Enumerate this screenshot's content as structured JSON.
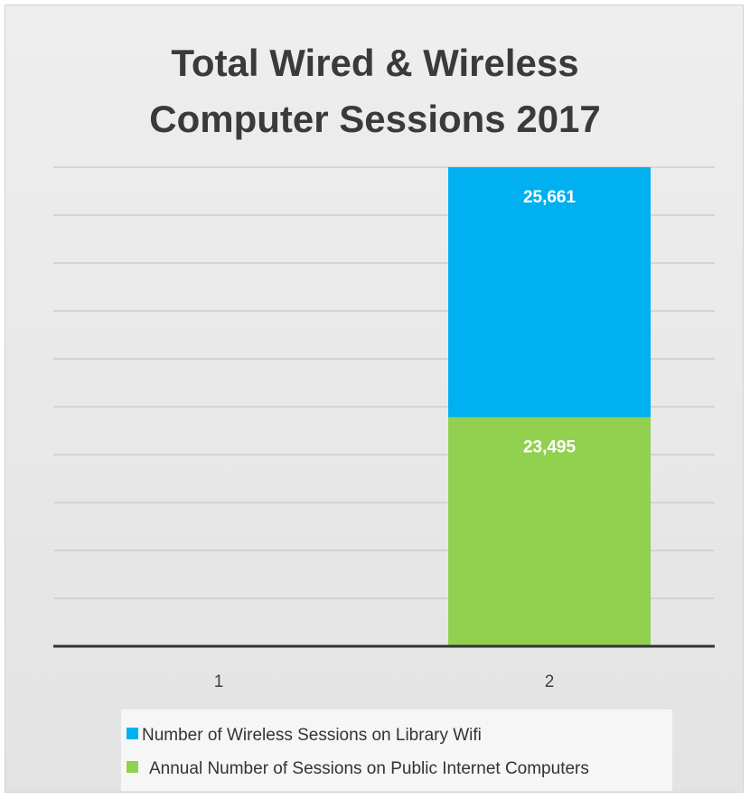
{
  "chart_data": {
    "type": "bar",
    "stacked": true,
    "title_lines": [
      "Total Wired & Wireless",
      "Computer Sessions 2017"
    ],
    "categories": [
      "1",
      "2"
    ],
    "series": [
      {
        "name": "Annual Number of Sessions on Public Internet Computers",
        "color": "#92d050",
        "values": [
          0,
          23495
        ],
        "labels": [
          "",
          "23,495"
        ]
      },
      {
        "name": "Number of Wireless Sessions on Library Wifi",
        "color": "#00b0f0",
        "values": [
          0,
          25661
        ],
        "labels": [
          "",
          "25,661"
        ]
      }
    ],
    "legend": {
      "placement": "bottom",
      "entries": [
        {
          "label": "Number of Wireless Sessions on Library Wifi",
          "color": "#00b0f0"
        },
        {
          "label": "Annual Number of Sessions on Public Internet Computers",
          "color": "#92d050"
        }
      ]
    },
    "grid": true,
    "ylim": [
      0,
      49156
    ]
  }
}
